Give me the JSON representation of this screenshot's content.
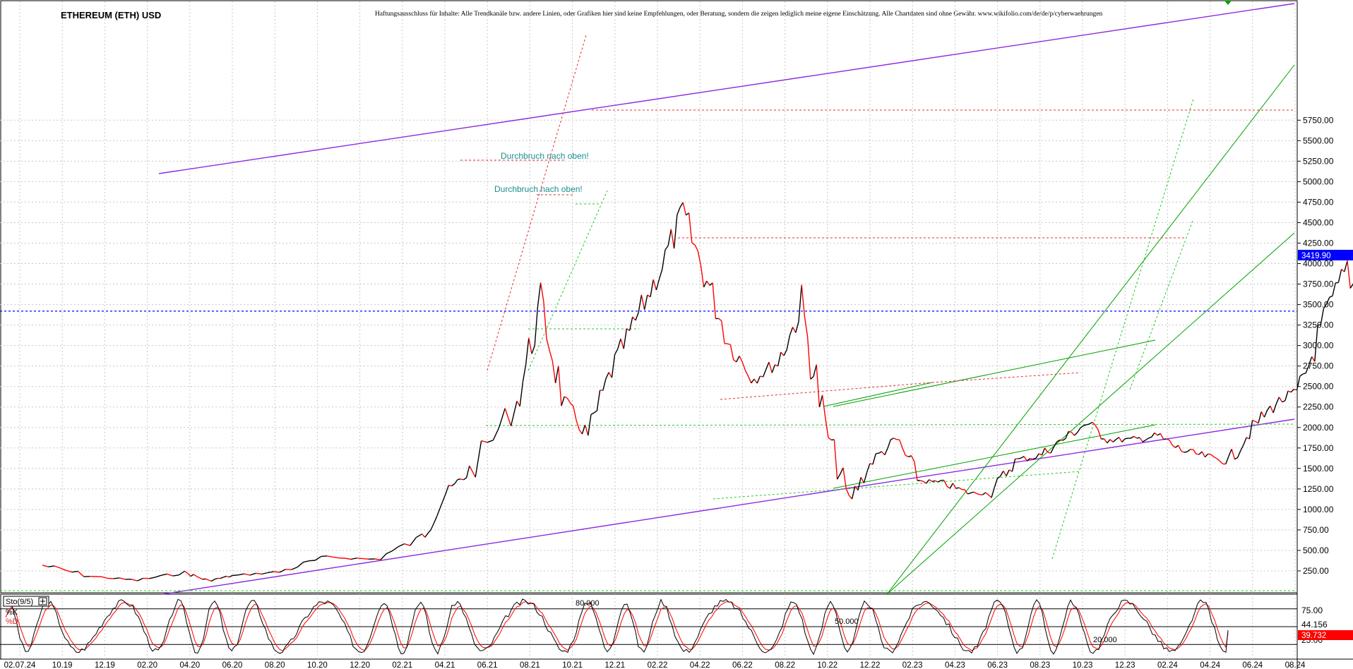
{
  "header": {
    "title": "ETHEREUM (ETH) USD",
    "disclaimer": "Haftungsausschluss für Inhalte: Alle Trendkanäle bzw. andere Linien, oder Grafiken hier sind keine Empfehlungen, oder Beratung, sondern die zeigen lediglich meine eigene Einschätzung. Alle Chartdaten sind ohne Gewähr. www.wikifolio.com/de/de/p/cyberwaehrungen"
  },
  "colors": {
    "channel": "#8a2be2",
    "trend": "#00a000",
    "trend_dotted": "#22cc22",
    "ref_red": "#e03030",
    "price_up": "#000000",
    "price_down": "#ff0000",
    "current_price": "#0000ff",
    "stoch_k": "#000000",
    "stoch_d": "#ff0000",
    "annotation": "#1a8f8f"
  },
  "chart_data": [
    {
      "type": "line",
      "title": "ETHEREUM (ETH) USD",
      "xlabel": "",
      "ylabel": "",
      "ylim": [
        0,
        5950
      ],
      "yticks": [
        250,
        500,
        750,
        1000,
        1250,
        1500,
        1750,
        2000,
        2250,
        2500,
        2750,
        3000,
        3250,
        3500,
        3750,
        4000,
        4250,
        4500,
        4750,
        5000,
        5250,
        5500,
        5750
      ],
      "ytick_labels": [
        "250.00",
        "500.00",
        "750.00",
        "1000.00",
        "1250.00",
        "1500.00",
        "1750.00",
        "2000.00",
        "2250.00",
        "2500.00",
        "2750.00",
        "3000.00",
        "3250.00",
        "3500.00",
        "3750.00",
        "4000.00",
        "4250.00",
        "4500.00",
        "4750.00",
        "5000.00",
        "5250.00",
        "5500.00",
        "5750.00"
      ],
      "xtick_labels": [
        "02.07.24",
        "10.19",
        "12.19",
        "02.20",
        "04.20",
        "06.20",
        "08.20",
        "10.20",
        "12.20",
        "02.21",
        "04.21",
        "06.21",
        "08.21",
        "10.21",
        "12.21",
        "02.22",
        "04.22",
        "06.22",
        "08.22",
        "10.22",
        "12.22",
        "02.23",
        "04.23",
        "06.23",
        "08.23",
        "10.23",
        "12.23",
        "02.24",
        "04.24",
        "06.24",
        "08.24"
      ],
      "grid": true,
      "current_price": 3419.9,
      "current_price_label": "3419.90",
      "x": [
        "08.19",
        "10.19",
        "12.19",
        "02.20",
        "03.20",
        "04.20",
        "06.20",
        "08.20",
        "10.20",
        "12.20",
        "01.21",
        "02.21",
        "04.21",
        "05.21",
        "06.21",
        "07.21",
        "08.21",
        "09.21",
        "10.21",
        "11.21",
        "12.21",
        "01.22",
        "02.22",
        "03.22",
        "04.22",
        "05.22",
        "06.22",
        "07.22",
        "08.22",
        "09.22",
        "10.22",
        "11.22",
        "12.22",
        "01.23",
        "02.23",
        "03.23",
        "04.23",
        "05.23",
        "06.23",
        "07.23",
        "08.23",
        "09.23",
        "10.23",
        "11.23",
        "12.23",
        "01.24",
        "02.24",
        "03.24",
        "04.24",
        "05.24",
        "06.24",
        "07.24"
      ],
      "series": [
        {
          "values": [
            320,
            185,
            135,
            230,
            130,
            190,
            240,
            420,
            390,
            650,
            1200,
            1450,
            2300,
            3500,
            2300,
            1900,
            2700,
            3300,
            3900,
            4600,
            3800,
            3000,
            2600,
            2800,
            3450,
            2000,
            1100,
            1600,
            1850,
            1350,
            1320,
            1200,
            1200,
            1600,
            1650,
            1850,
            2050,
            1850,
            1850,
            1900,
            1720,
            1650,
            1580,
            2000,
            2300,
            2450,
            3300,
            3950,
            3100,
            3250,
            3800,
            3420
          ]
        }
      ]
    },
    {
      "type": "line",
      "title": "Sto(9/5)",
      "ylim": [
        0,
        100
      ],
      "ytick_labels": [
        "75.00",
        "25.00"
      ],
      "levels": [
        {
          "label": "80.000",
          "value": 80
        },
        {
          "label": "50.000",
          "value": 50
        },
        {
          "label": "20.000",
          "value": 20
        }
      ],
      "series": [
        {
          "name": "%K",
          "value_label": "44.156",
          "last": 44.156
        },
        {
          "name": "%D",
          "value_label": "39.732",
          "last": 39.732
        }
      ]
    }
  ],
  "annotations": [
    {
      "text": "Durchbruch nach oben!"
    },
    {
      "text": "Durchbruch nach oben!"
    }
  ]
}
